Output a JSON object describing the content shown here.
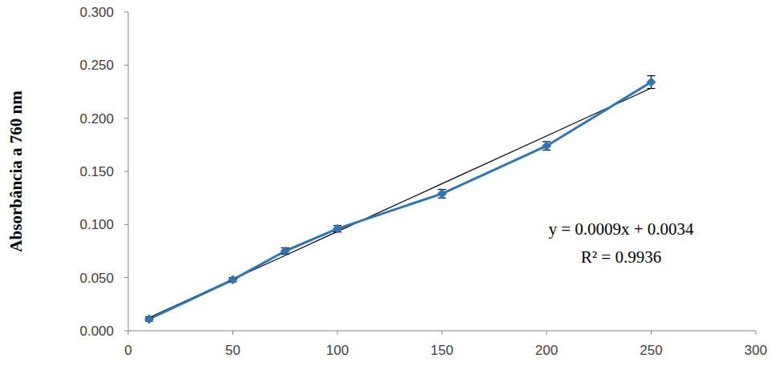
{
  "chart_data": {
    "type": "line",
    "y_label": "Absorbância a 760 nm",
    "annotations": [
      "y = 0.0009x + 0.0034",
      "R² = 0.9936"
    ],
    "x": [
      10,
      50,
      75,
      100,
      150,
      200,
      250
    ],
    "series": [
      {
        "color": "#2e75b6",
        "marker": "diamond",
        "line_style": "solid",
        "values": [
          0.011,
          0.048,
          0.075,
          0.096,
          0.129,
          0.174,
          0.234
        ],
        "errors": [
          0.002,
          0.002,
          0.003,
          0.003,
          0.004,
          0.004,
          0.006
        ]
      },
      {
        "type": "line",
        "color": "#000000",
        "marker": "none",
        "line_style": "solid",
        "values": [
          0.0124,
          0.0484,
          0.0709,
          0.0934,
          0.1384,
          0.1834,
          0.2284
        ]
      }
    ],
    "xlim": [
      0,
      300
    ],
    "xticks": [
      0,
      50,
      100,
      150,
      200,
      250,
      300
    ],
    "ylim": [
      0,
      0.3
    ],
    "yticks": [
      {
        "value": 0,
        "label": "0.000"
      },
      {
        "value": 0.05,
        "label": "0.050"
      },
      {
        "value": 0.1,
        "label": "0.100"
      },
      {
        "value": 0.15,
        "label": "0.150"
      },
      {
        "value": 0.2,
        "label": "0.200"
      },
      {
        "value": 0.25,
        "label": "0.250"
      },
      {
        "value": 0.3,
        "label": "0.300"
      }
    ],
    "grid": false,
    "tick_labels": true
  }
}
